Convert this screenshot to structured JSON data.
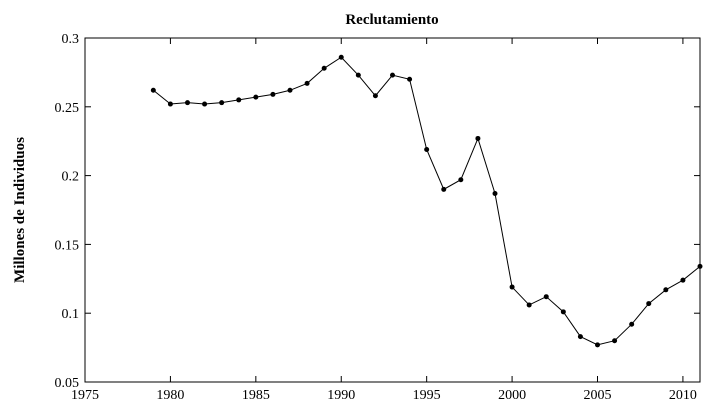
{
  "chart_data": {
    "type": "line",
    "title": "Reclutamiento",
    "y_label": "Millones de Individuos",
    "x": [
      1979,
      1980,
      1981,
      1982,
      1983,
      1984,
      1985,
      1986,
      1987,
      1988,
      1989,
      1990,
      1991,
      1992,
      1993,
      1994,
      1995,
      1996,
      1997,
      1998,
      1999,
      2000,
      2001,
      2002,
      2003,
      2004,
      2005,
      2006,
      2007,
      2008,
      2009,
      2010,
      2011
    ],
    "values": [
      0.262,
      0.252,
      0.253,
      0.252,
      0.253,
      0.255,
      0.257,
      0.259,
      0.262,
      0.267,
      0.278,
      0.286,
      0.273,
      0.258,
      0.273,
      0.27,
      0.219,
      0.19,
      0.197,
      0.227,
      0.187,
      0.119,
      0.106,
      0.112,
      0.101,
      0.083,
      0.077,
      0.08,
      0.092,
      0.107,
      0.117,
      0.124,
      0.134
    ],
    "color": "#000000",
    "xlim": [
      1975,
      2011
    ],
    "xticks": [
      1975,
      1980,
      1985,
      1990,
      1995,
      2000,
      2005,
      2010
    ],
    "ylim": [
      0.05,
      0.3
    ],
    "yticks": [
      0.05,
      0.1,
      0.15,
      0.2,
      0.25,
      0.3
    ],
    "grid": false
  }
}
